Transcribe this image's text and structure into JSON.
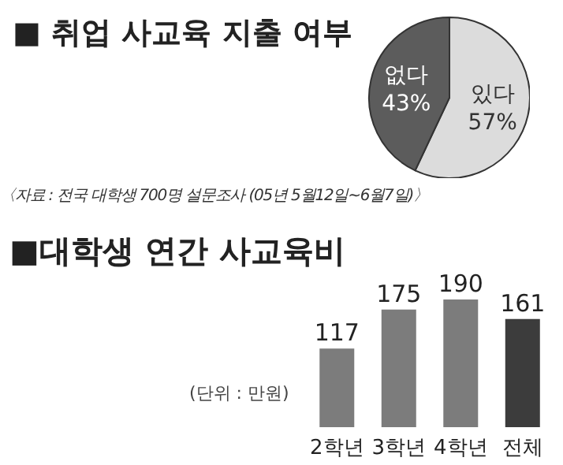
{
  "chart_data": [
    {
      "type": "pie",
      "title": "■ 취업 사교육 지출 여부",
      "categories": [
        "있다",
        "없다"
      ],
      "values": [
        57,
        43
      ],
      "value_labels": [
        "57%",
        "43%"
      ],
      "colors": [
        "#dcdcdc",
        "#5c5c5c"
      ],
      "legend": false,
      "annotations": [
        "〈자료 : 전국 대학생 700명 설문조사 (05년 5월12일~6월7일)〉"
      ]
    },
    {
      "type": "bar",
      "title": "■대학생 연간 사교육비",
      "categories": [
        "2학년",
        "3학년",
        "4학년",
        "전체"
      ],
      "values": [
        117,
        175,
        190,
        161
      ],
      "colors": [
        "#7c7c7c",
        "#7c7c7c",
        "#7c7c7c",
        "#3c3c3c"
      ],
      "data_labels": true,
      "legend": false,
      "grid": false,
      "annotations": [
        "(단위 : 만원)"
      ]
    }
  ]
}
